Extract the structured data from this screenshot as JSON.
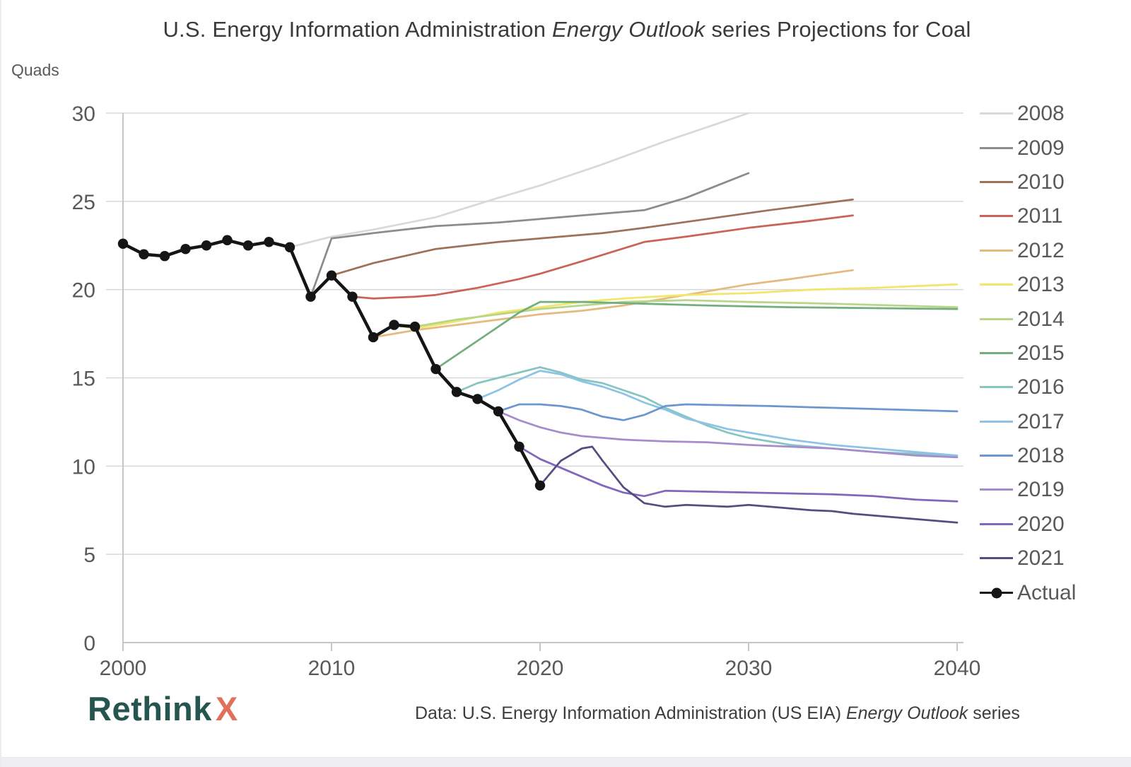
{
  "header": {
    "title_prefix": "U.S. Energy Information Administration",
    "title_italic": "Energy Outlook",
    "title_suffix": "series Projections for Coal"
  },
  "axis_unit_label": "Quads",
  "footer": {
    "logo_text": "Rethink",
    "logo_x": "X",
    "credit_prefix": "Data: U.S. Energy Information Administration (US EIA)",
    "credit_italic": "Energy Outlook",
    "credit_suffix": "series"
  },
  "colors": {
    "gridline": "#d8d8d8",
    "axis": "#c6c6c6",
    "tick_text": "#595959",
    "title_text": "#3a3a3a",
    "logo_teal": "#24564f",
    "logo_orange": "#e0705a"
  },
  "chart_data": {
    "type": "line",
    "title": "U.S. Energy Information Administration Energy Outlook series Projections for Coal",
    "xlabel": "",
    "ylabel": "Quads",
    "xlim": [
      2000,
      2040.3
    ],
    "ylim": [
      0,
      30
    ],
    "xticks": [
      2000,
      2010,
      2020,
      2030,
      2040
    ],
    "yticks": [
      0,
      5,
      10,
      15,
      20,
      25,
      30
    ],
    "grid": true,
    "legend_position": "right",
    "series": [
      {
        "name": "2008",
        "color": "#d9d9d9",
        "marker": false,
        "points": [
          [
            2008,
            22.4
          ],
          [
            2010,
            23.0
          ],
          [
            2012,
            23.4
          ],
          [
            2015,
            24.1
          ],
          [
            2018,
            25.2
          ],
          [
            2020,
            25.9
          ],
          [
            2023,
            27.1
          ],
          [
            2026,
            28.4
          ],
          [
            2028,
            29.2
          ],
          [
            2030,
            30.0
          ]
        ]
      },
      {
        "name": "2009",
        "color": "#8c8c8c",
        "marker": false,
        "points": [
          [
            2009,
            19.6
          ],
          [
            2010,
            22.9
          ],
          [
            2012,
            23.2
          ],
          [
            2015,
            23.6
          ],
          [
            2018,
            23.8
          ],
          [
            2020,
            24.0
          ],
          [
            2023,
            24.3
          ],
          [
            2025,
            24.5
          ],
          [
            2027,
            25.2
          ],
          [
            2030,
            26.6
          ]
        ]
      },
      {
        "name": "2010",
        "color": "#9e7158",
        "marker": false,
        "points": [
          [
            2010,
            20.8
          ],
          [
            2012,
            21.5
          ],
          [
            2015,
            22.3
          ],
          [
            2018,
            22.7
          ],
          [
            2020,
            22.9
          ],
          [
            2023,
            23.2
          ],
          [
            2025,
            23.5
          ],
          [
            2028,
            24.0
          ],
          [
            2031,
            24.5
          ],
          [
            2033,
            24.8
          ],
          [
            2035,
            25.1
          ]
        ]
      },
      {
        "name": "2011",
        "color": "#cc6257",
        "marker": false,
        "points": [
          [
            2011,
            19.6
          ],
          [
            2012,
            19.5
          ],
          [
            2014,
            19.6
          ],
          [
            2015,
            19.7
          ],
          [
            2017,
            20.1
          ],
          [
            2019,
            20.6
          ],
          [
            2020,
            20.9
          ],
          [
            2022,
            21.6
          ],
          [
            2025,
            22.7
          ],
          [
            2027,
            23.0
          ],
          [
            2030,
            23.5
          ],
          [
            2033,
            23.9
          ],
          [
            2035,
            24.2
          ]
        ]
      },
      {
        "name": "2012",
        "color": "#e6ba7e",
        "marker": false,
        "points": [
          [
            2012,
            17.3
          ],
          [
            2014,
            17.7
          ],
          [
            2016,
            18.0
          ],
          [
            2018,
            18.3
          ],
          [
            2020,
            18.6
          ],
          [
            2022,
            18.8
          ],
          [
            2024,
            19.1
          ],
          [
            2026,
            19.5
          ],
          [
            2028,
            19.9
          ],
          [
            2030,
            20.3
          ],
          [
            2032,
            20.6
          ],
          [
            2035,
            21.1
          ]
        ]
      },
      {
        "name": "2013",
        "color": "#f1e768",
        "marker": false,
        "points": [
          [
            2013,
            18.0
          ],
          [
            2014,
            17.8
          ],
          [
            2016,
            18.2
          ],
          [
            2018,
            18.7
          ],
          [
            2020,
            19.0
          ],
          [
            2022,
            19.3
          ],
          [
            2024,
            19.5
          ],
          [
            2027,
            19.7
          ],
          [
            2030,
            19.8
          ],
          [
            2033,
            20.0
          ],
          [
            2036,
            20.1
          ],
          [
            2040,
            20.3
          ]
        ]
      },
      {
        "name": "2014",
        "color": "#b7d689",
        "marker": false,
        "points": [
          [
            2014,
            17.9
          ],
          [
            2016,
            18.3
          ],
          [
            2018,
            18.6
          ],
          [
            2020,
            18.9
          ],
          [
            2022,
            19.1
          ],
          [
            2024,
            19.3
          ],
          [
            2027,
            19.4
          ],
          [
            2030,
            19.3
          ],
          [
            2034,
            19.2
          ],
          [
            2037,
            19.1
          ],
          [
            2040,
            19.0
          ]
        ]
      },
      {
        "name": "2015",
        "color": "#72af7d",
        "marker": false,
        "points": [
          [
            2015,
            15.5
          ],
          [
            2017,
            17.1
          ],
          [
            2019,
            18.7
          ],
          [
            2020,
            19.3
          ],
          [
            2022,
            19.3
          ],
          [
            2025,
            19.2
          ],
          [
            2028,
            19.1
          ],
          [
            2032,
            19.0
          ],
          [
            2036,
            18.95
          ],
          [
            2040,
            18.9
          ]
        ]
      },
      {
        "name": "2016",
        "color": "#87c5c3",
        "marker": false,
        "points": [
          [
            2016,
            14.2
          ],
          [
            2017,
            14.7
          ],
          [
            2018,
            15.0
          ],
          [
            2019,
            15.3
          ],
          [
            2020,
            15.6
          ],
          [
            2021,
            15.3
          ],
          [
            2022,
            14.9
          ],
          [
            2023,
            14.7
          ],
          [
            2024,
            14.3
          ],
          [
            2025,
            13.9
          ],
          [
            2026,
            13.3
          ],
          [
            2027,
            12.8
          ],
          [
            2028,
            12.3
          ],
          [
            2029,
            11.9
          ],
          [
            2030,
            11.6
          ],
          [
            2032,
            11.2
          ],
          [
            2034,
            11.0
          ],
          [
            2036,
            10.8
          ],
          [
            2038,
            10.7
          ],
          [
            2040,
            10.6
          ]
        ]
      },
      {
        "name": "2017",
        "color": "#8cc3e6",
        "marker": false,
        "points": [
          [
            2017,
            13.8
          ],
          [
            2018,
            14.3
          ],
          [
            2019,
            14.9
          ],
          [
            2020,
            15.4
          ],
          [
            2021,
            15.2
          ],
          [
            2022,
            14.8
          ],
          [
            2023,
            14.5
          ],
          [
            2024,
            14.1
          ],
          [
            2025,
            13.6
          ],
          [
            2026,
            13.2
          ],
          [
            2027,
            12.7
          ],
          [
            2028,
            12.4
          ],
          [
            2029,
            12.1
          ],
          [
            2030,
            11.9
          ],
          [
            2032,
            11.5
          ],
          [
            2034,
            11.2
          ],
          [
            2036,
            11.0
          ],
          [
            2038,
            10.8
          ],
          [
            2040,
            10.6
          ]
        ]
      },
      {
        "name": "2018",
        "color": "#6c96cf",
        "marker": false,
        "points": [
          [
            2018,
            13.1
          ],
          [
            2019,
            13.5
          ],
          [
            2020,
            13.5
          ],
          [
            2021,
            13.4
          ],
          [
            2022,
            13.2
          ],
          [
            2023,
            12.8
          ],
          [
            2024,
            12.6
          ],
          [
            2025,
            12.9
          ],
          [
            2026,
            13.4
          ],
          [
            2027,
            13.5
          ],
          [
            2029,
            13.45
          ],
          [
            2031,
            13.4
          ],
          [
            2034,
            13.3
          ],
          [
            2037,
            13.2
          ],
          [
            2040,
            13.1
          ]
        ]
      },
      {
        "name": "2019",
        "color": "#a68ccd",
        "marker": false,
        "points": [
          [
            2018,
            13.1
          ],
          [
            2019,
            12.6
          ],
          [
            2020,
            12.2
          ],
          [
            2021,
            11.9
          ],
          [
            2022,
            11.7
          ],
          [
            2023,
            11.6
          ],
          [
            2024,
            11.5
          ],
          [
            2026,
            11.4
          ],
          [
            2028,
            11.35
          ],
          [
            2030,
            11.2
          ],
          [
            2032,
            11.1
          ],
          [
            2034,
            11.0
          ],
          [
            2036,
            10.8
          ],
          [
            2038,
            10.6
          ],
          [
            2040,
            10.5
          ]
        ]
      },
      {
        "name": "2020",
        "color": "#8266bb",
        "marker": false,
        "points": [
          [
            2019,
            11.1
          ],
          [
            2020,
            10.4
          ],
          [
            2021,
            9.9
          ],
          [
            2022,
            9.4
          ],
          [
            2023,
            8.9
          ],
          [
            2024,
            8.5
          ],
          [
            2025,
            8.3
          ],
          [
            2026,
            8.6
          ],
          [
            2028,
            8.55
          ],
          [
            2030,
            8.5
          ],
          [
            2032,
            8.45
          ],
          [
            2034,
            8.4
          ],
          [
            2036,
            8.3
          ],
          [
            2038,
            8.1
          ],
          [
            2040,
            8.0
          ]
        ]
      },
      {
        "name": "2021",
        "color": "#534e82",
        "marker": false,
        "points": [
          [
            2020,
            8.9
          ],
          [
            2021,
            10.3
          ],
          [
            2022,
            11.0
          ],
          [
            2022.5,
            11.1
          ],
          [
            2023,
            10.3
          ],
          [
            2024,
            8.8
          ],
          [
            2025,
            7.9
          ],
          [
            2026,
            7.7
          ],
          [
            2027,
            7.8
          ],
          [
            2028,
            7.75
          ],
          [
            2029,
            7.7
          ],
          [
            2030,
            7.8
          ],
          [
            2031,
            7.7
          ],
          [
            2032,
            7.6
          ],
          [
            2033,
            7.5
          ],
          [
            2034,
            7.45
          ],
          [
            2035,
            7.3
          ],
          [
            2036,
            7.2
          ],
          [
            2037,
            7.1
          ],
          [
            2038,
            7.0
          ],
          [
            2039,
            6.9
          ],
          [
            2040,
            6.8
          ]
        ]
      },
      {
        "name": "Actual",
        "color": "#151515",
        "marker": true,
        "points": [
          [
            2000,
            22.6
          ],
          [
            2001,
            22.0
          ],
          [
            2002,
            21.9
          ],
          [
            2003,
            22.3
          ],
          [
            2004,
            22.5
          ],
          [
            2005,
            22.8
          ],
          [
            2006,
            22.5
          ],
          [
            2007,
            22.7
          ],
          [
            2008,
            22.4
          ],
          [
            2009,
            19.6
          ],
          [
            2010,
            20.8
          ],
          [
            2011,
            19.6
          ],
          [
            2012,
            17.3
          ],
          [
            2013,
            18.0
          ],
          [
            2014,
            17.9
          ],
          [
            2015,
            15.5
          ],
          [
            2016,
            14.2
          ],
          [
            2017,
            13.8
          ],
          [
            2018,
            13.1
          ],
          [
            2019,
            11.1
          ],
          [
            2020,
            8.9
          ]
        ]
      }
    ]
  }
}
